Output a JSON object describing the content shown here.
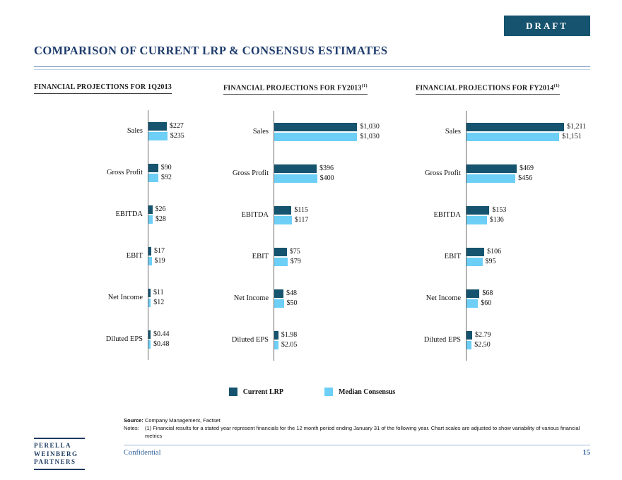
{
  "badge": {
    "label": "DRAFT"
  },
  "title": "COMPARISON OF CURRENT LRP & CONSENSUS ESTIMATES",
  "colors": {
    "current_lrp": "#15536e",
    "median_consensus": "#6dcff6",
    "title_navy": "#1f3d6d",
    "footer_blue": "#31639c"
  },
  "legend": {
    "position": "bottom",
    "items": [
      {
        "label": "Current LRP",
        "color": "#15536e"
      },
      {
        "label": "Median Consensus",
        "color": "#6dcff6"
      }
    ]
  },
  "chart_data": [
    {
      "type": "bar",
      "orientation": "horizontal",
      "title": "FINANCIAL PROJECTIONS FOR 1Q2013",
      "title_superscript": "",
      "categories": [
        "Sales",
        "Gross Profit",
        "EBITDA",
        "EBIT",
        "Net Income",
        "Diluted EPS"
      ],
      "series": [
        {
          "name": "Current LRP",
          "color": "#15536e",
          "values": [
            227,
            90,
            26,
            17,
            11,
            0.44
          ],
          "labels": [
            "$227",
            "$90",
            "$26",
            "$17",
            "$11",
            "$0.44"
          ]
        },
        {
          "name": "Median Consensus",
          "color": "#6dcff6",
          "values": [
            235,
            92,
            28,
            19,
            12,
            0.48
          ],
          "labels": [
            "$235",
            "$92",
            "$28",
            "$19",
            "$12",
            "$0.48"
          ]
        }
      ]
    },
    {
      "type": "bar",
      "orientation": "horizontal",
      "title": "FINANCIAL PROJECTIONS FOR FY2013",
      "title_superscript": "(1)",
      "categories": [
        "Sales",
        "Gross Profit",
        "EBITDA",
        "EBIT",
        "Net Income",
        "Diluted EPS"
      ],
      "series": [
        {
          "name": "Current LRP",
          "color": "#15536e",
          "values": [
            1030,
            396,
            115,
            75,
            48,
            1.98
          ],
          "labels": [
            "$1,030",
            "$396",
            "$115",
            "$75",
            "$48",
            "$1.98"
          ]
        },
        {
          "name": "Median Consensus",
          "color": "#6dcff6",
          "values": [
            1030,
            400,
            117,
            79,
            50,
            2.05
          ],
          "labels": [
            "$1,030",
            "$400",
            "$117",
            "$79",
            "$50",
            "$2.05"
          ]
        }
      ]
    },
    {
      "type": "bar",
      "orientation": "horizontal",
      "title": "FINANCIAL PROJECTIONS FOR FY2014",
      "title_superscript": "(1)",
      "categories": [
        "Sales",
        "Gross Profit",
        "EBITDA",
        "EBIT",
        "Net Income",
        "Diluted EPS"
      ],
      "series": [
        {
          "name": "Current LRP",
          "color": "#15536e",
          "values": [
            1211,
            469,
            153,
            106,
            68,
            2.79
          ],
          "labels": [
            "$1,211",
            "$469",
            "$153",
            "$106",
            "$68",
            "$2.79"
          ]
        },
        {
          "name": "Median Consensus",
          "color": "#6dcff6",
          "values": [
            1151,
            456,
            136,
            95,
            60,
            2.5
          ],
          "labels": [
            "$1,151",
            "$456",
            "$136",
            "$95",
            "$60",
            "$2.50"
          ]
        }
      ]
    }
  ],
  "footer": {
    "source_label": "Source:",
    "source_text": "Company Management, Factset",
    "notes_label": "Notes:",
    "notes_text": "(1) Financial results for a stated year represent financials for the 12 month period ending January 31 of the following year. Chart scales are adjusted to show variability of various financial metrics",
    "confidential": "Confidential",
    "page_number": "15",
    "logo_lines": [
      "PERELLA",
      "WEINBERG",
      "PARTNERS"
    ]
  }
}
